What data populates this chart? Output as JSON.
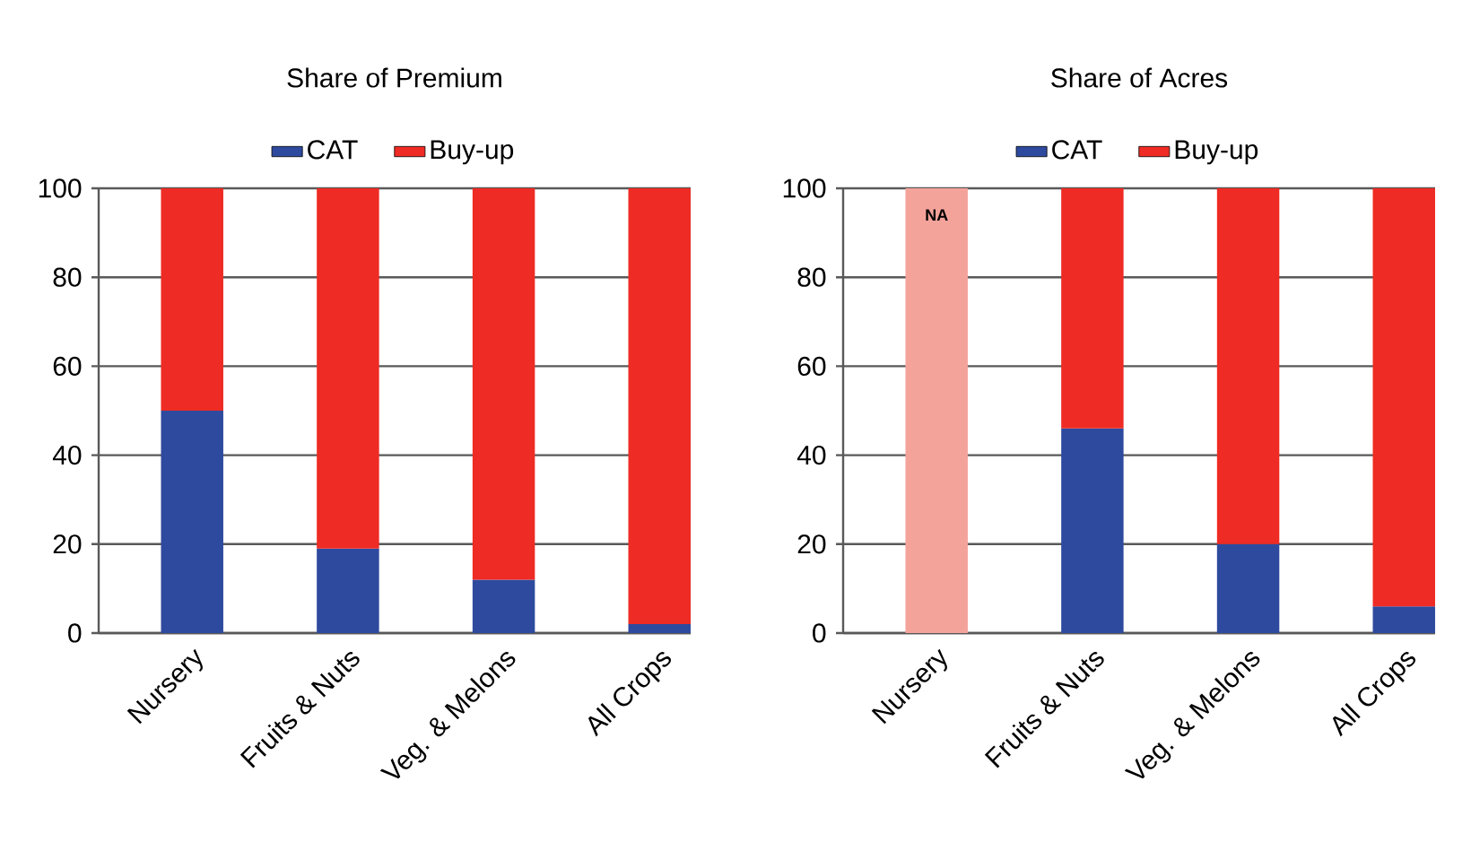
{
  "chart_data": [
    {
      "type": "bar",
      "title": "Share of Premium",
      "categories": [
        "Nursery",
        "Fruits & Nuts",
        "Veg. & Melons",
        "All Crops"
      ],
      "stacked": true,
      "ylim": [
        0,
        100
      ],
      "yticks": [
        0,
        20,
        40,
        60,
        80,
        100
      ],
      "grid": "y",
      "legend": "top",
      "series": [
        {
          "name": "CAT",
          "color": "#2e4a9e",
          "values": [
            50,
            19,
            12,
            2
          ]
        },
        {
          "name": "Buy-up",
          "color": "#ee2b24",
          "values": [
            50,
            81,
            88,
            98
          ]
        }
      ]
    },
    {
      "type": "bar",
      "title": "Share of Acres",
      "categories": [
        "Nursery",
        "Fruits & Nuts",
        "Veg. & Melons",
        "All Crops"
      ],
      "stacked": true,
      "ylim": [
        0,
        100
      ],
      "yticks": [
        0,
        20,
        40,
        60,
        80,
        100
      ],
      "grid": "y",
      "legend": "top",
      "annotations": [
        {
          "text": "NA",
          "x": "Nursery",
          "y": 94
        }
      ],
      "series": [
        {
          "name": "CAT",
          "color": "#2e4a9e",
          "values": [
            null,
            46,
            20,
            6
          ]
        },
        {
          "name": "Buy-up",
          "color": "#ee2b24",
          "values": [
            null,
            54,
            80,
            94
          ]
        },
        {
          "color": "#f4a39b",
          "values": [
            100,
            null,
            null,
            null
          ]
        }
      ]
    }
  ]
}
